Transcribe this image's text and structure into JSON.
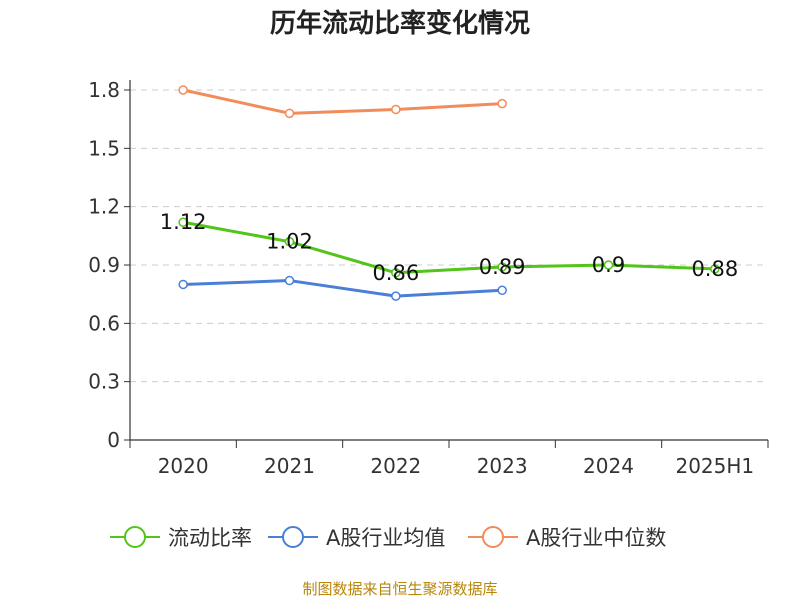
{
  "chart_data": {
    "type": "line",
    "title": "历年流动比率变化情况",
    "xlabel": "",
    "ylabel": "",
    "categories": [
      "2020",
      "2021",
      "2022",
      "2023",
      "2024",
      "2025H1"
    ],
    "ylim": [
      0,
      1.8
    ],
    "yticks": [
      "0",
      "0.3",
      "0.6",
      "0.9",
      "1.2",
      "1.5",
      "1.8"
    ],
    "grid": true,
    "legend_position": "bottom",
    "series": [
      {
        "name": "流动比率",
        "color": "#52c41a",
        "values": [
          1.12,
          1.02,
          0.86,
          0.89,
          0.9,
          0.88
        ],
        "labels": [
          "1.12",
          "1.02",
          "0.86",
          "0.89",
          "0.9",
          "0.88"
        ],
        "show_labels": true
      },
      {
        "name": "A股行业均值",
        "color": "#4a7fd8",
        "values": [
          0.8,
          0.82,
          0.74,
          0.77,
          null,
          null
        ],
        "show_labels": false
      },
      {
        "name": "A股行业中位数",
        "color": "#f28c5a",
        "values": [
          1.8,
          1.68,
          1.7,
          1.73,
          null,
          null
        ],
        "show_labels": false
      }
    ]
  },
  "source": "制图数据来自恒生聚源数据库"
}
